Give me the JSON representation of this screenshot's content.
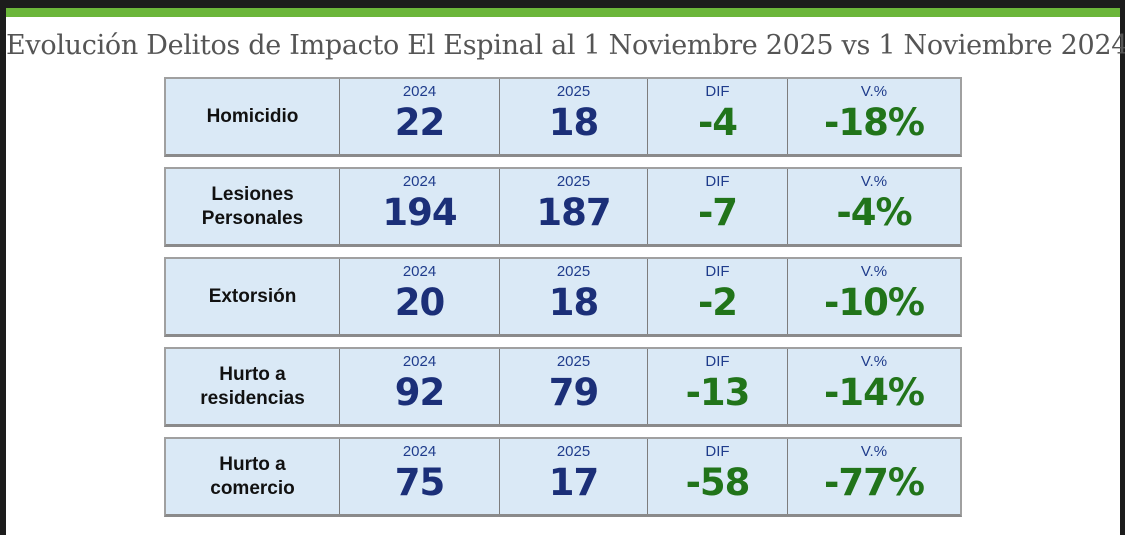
{
  "title": "Evolución Delitos de Impacto El Espinal al 1 Noviembre 2025 vs 1 Noviembre 2024",
  "colors": {
    "accent_bar": "#6bb63a",
    "cell_background": "#dae9f6",
    "value_blue": "#1b2f78",
    "value_green": "#21741a"
  },
  "rows": [
    {
      "label": "Homicidio",
      "h2024": "2024",
      "v2024": "22",
      "h2025": "2025",
      "v2025": "18",
      "hdif": "DIF",
      "vdif": "-4",
      "hvar": "V.%",
      "vvar": "-18%"
    },
    {
      "label": "Lesiones Personales",
      "h2024": "2024",
      "v2024": "194",
      "h2025": "2025",
      "v2025": "187",
      "hdif": "DIF",
      "vdif": "-7",
      "hvar": "V.%",
      "vvar": "-4%"
    },
    {
      "label": "Extorsión",
      "h2024": "2024",
      "v2024": "20",
      "h2025": "2025",
      "v2025": "18",
      "hdif": "DIF",
      "vdif": "-2",
      "hvar": "V.%",
      "vvar": "-10%"
    },
    {
      "label": "Hurto a residencias",
      "h2024": "2024",
      "v2024": "92",
      "h2025": "2025",
      "v2025": "79",
      "hdif": "DIF",
      "vdif": "-13",
      "hvar": "V.%",
      "vvar": "-14%"
    },
    {
      "label": "Hurto a comercio",
      "h2024": "2024",
      "v2024": "75",
      "h2025": "2025",
      "v2025": "17",
      "hdif": "DIF",
      "vdif": "-58",
      "hvar": "V.%",
      "vvar": "-77%"
    }
  ]
}
